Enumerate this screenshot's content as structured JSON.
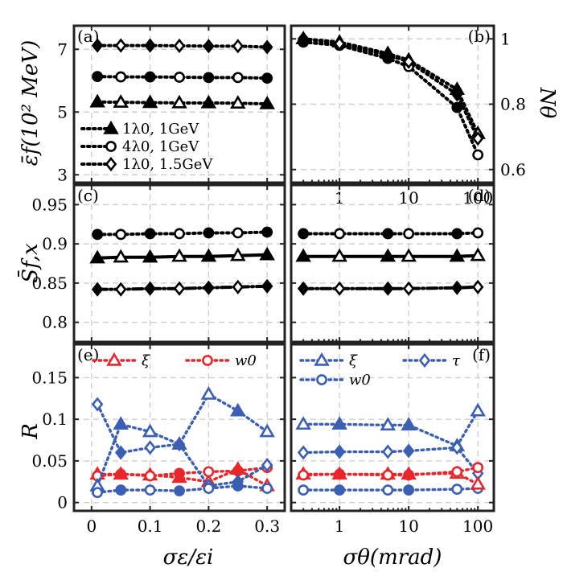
{
  "figure": {
    "x_labels": [
      "σε/εi",
      "σθ(mrad)"
    ],
    "y_labels": [
      "ε̄f(10² MeV)",
      "Nθ",
      "S̄f,x",
      "R"
    ]
  },
  "chart_data": [
    {
      "id": "a",
      "panel_label": "(a)",
      "type": "line",
      "xscale": "linear",
      "xlim": [
        -0.03,
        0.33
      ],
      "ylim": [
        2.75,
        7.75
      ],
      "xticks": [
        0,
        0.1,
        0.2,
        0.3
      ],
      "yticks": [
        3,
        5,
        7
      ],
      "ylabel": "ε̄f(10² MeV)",
      "ylabel_side": "left",
      "grid": true,
      "legend": "lower-left",
      "x": [
        0.01,
        0.05,
        0.1,
        0.15,
        0.2,
        0.25,
        0.3
      ],
      "series": [
        {
          "name": "1λ0, 1GeV",
          "marker": "triangle",
          "color": "#000000",
          "dash": "dotted",
          "values": [
            5.32,
            5.31,
            5.3,
            5.29,
            5.29,
            5.28,
            5.26
          ]
        },
        {
          "name": "4λ0, 1GeV",
          "marker": "circle",
          "color": "#000000",
          "dash": "dotted",
          "values": [
            6.13,
            6.12,
            6.12,
            6.11,
            6.1,
            6.1,
            6.08
          ]
        },
        {
          "name": "1λ0, 1.5GeV",
          "marker": "diamond",
          "color": "#000000",
          "dash": "dotted",
          "values": [
            7.12,
            7.12,
            7.12,
            7.11,
            7.1,
            7.1,
            7.07
          ]
        }
      ]
    },
    {
      "id": "b",
      "panel_label": "(b)",
      "type": "line",
      "xscale": "log",
      "xlim": [
        0.2,
        170
      ],
      "ylim": [
        0.56,
        1.04
      ],
      "xticks": [
        1,
        10,
        100
      ],
      "xtick_labels": [
        "1",
        "10",
        "100"
      ],
      "yticks": [
        0.6,
        0.8,
        1
      ],
      "ytick_labels": [
        "0.6",
        "0.8",
        "1"
      ],
      "ylabel": "Nθ",
      "ylabel_side": "right",
      "grid": true,
      "x": [
        0.3,
        1,
        5,
        10,
        50,
        100
      ],
      "series": [
        {
          "name": "1λ0, 1GeV",
          "marker": "triangle",
          "color": "#000000",
          "dash": "dotted",
          "values": [
            1.0,
            0.99,
            0.955,
            0.935,
            0.845,
            0.71
          ]
        },
        {
          "name": "4λ0, 1GeV",
          "marker": "circle",
          "color": "#000000",
          "dash": "dotted",
          "values": [
            0.99,
            0.98,
            0.94,
            0.915,
            0.79,
            0.645
          ]
        },
        {
          "name": "1λ0, 1.5GeV",
          "marker": "diamond",
          "color": "#000000",
          "dash": "dotted",
          "values": [
            1.0,
            0.985,
            0.95,
            0.93,
            0.83,
            0.695
          ]
        }
      ]
    },
    {
      "id": "c",
      "panel_label": "(c)",
      "type": "line",
      "xscale": "linear",
      "xlim": [
        -0.03,
        0.33
      ],
      "ylim": [
        0.775,
        0.975
      ],
      "xticks": [
        0,
        0.1,
        0.2,
        0.3
      ],
      "yticks": [
        0.8,
        0.85,
        0.9,
        0.95
      ],
      "ytick_labels": [
        "0.8",
        "0.85",
        "0.9",
        "0.95"
      ],
      "ylabel": "S̄f,x",
      "ylabel_side": "left",
      "grid": true,
      "x": [
        0.01,
        0.05,
        0.1,
        0.15,
        0.2,
        0.25,
        0.3
      ],
      "series": [
        {
          "name": "4λ0, 1GeV",
          "marker": "circle",
          "color": "#000000",
          "dash": "dotted",
          "values": [
            0.912,
            0.912,
            0.913,
            0.913,
            0.914,
            0.914,
            0.915
          ]
        },
        {
          "name": "1λ0, 1GeV",
          "marker": "triangle",
          "color": "#000000",
          "dash": "solid",
          "values": [
            0.882,
            0.883,
            0.883,
            0.884,
            0.884,
            0.885,
            0.886
          ]
        },
        {
          "name": "1λ0, 1.5GeV",
          "marker": "diamond",
          "color": "#000000",
          "dash": "dashdot",
          "values": [
            0.842,
            0.842,
            0.843,
            0.843,
            0.844,
            0.845,
            0.846
          ]
        }
      ]
    },
    {
      "id": "d",
      "panel_label": "(d)",
      "type": "line",
      "xscale": "log",
      "xlim": [
        0.2,
        170
      ],
      "ylim": [
        0.775,
        0.975
      ],
      "xticks": [
        1,
        10,
        100
      ],
      "yticks": [
        0.8,
        0.85,
        0.9,
        0.95
      ],
      "grid": true,
      "x": [
        0.3,
        1,
        5,
        10,
        50,
        100
      ],
      "series": [
        {
          "name": "4λ0, 1GeV",
          "marker": "circle",
          "color": "#000000",
          "dash": "dotted",
          "values": [
            0.913,
            0.913,
            0.913,
            0.913,
            0.913,
            0.914
          ]
        },
        {
          "name": "1λ0, 1GeV",
          "marker": "triangle",
          "color": "#000000",
          "dash": "solid",
          "values": [
            0.884,
            0.884,
            0.884,
            0.884,
            0.884,
            0.885
          ]
        },
        {
          "name": "1λ0, 1.5GeV",
          "marker": "diamond",
          "color": "#000000",
          "dash": "dashdot",
          "values": [
            0.843,
            0.843,
            0.843,
            0.843,
            0.844,
            0.845
          ]
        }
      ]
    },
    {
      "id": "e",
      "panel_label": "(e)",
      "type": "line",
      "xscale": "linear",
      "xlim": [
        -0.03,
        0.33
      ],
      "ylim": [
        -0.01,
        0.19
      ],
      "xticks": [
        0,
        0.1,
        0.2,
        0.3
      ],
      "xtick_labels": [
        "0",
        "0.1",
        "0.2",
        "0.3"
      ],
      "yticks": [
        0,
        0.05,
        0.1,
        0.15
      ],
      "ytick_labels": [
        "0",
        "0.05",
        "0.1",
        "0.15"
      ],
      "xlabel": "σε/εi",
      "ylabel": "R",
      "ylabel_side": "left",
      "grid": true,
      "legend": "top",
      "x": [
        0.01,
        0.05,
        0.1,
        0.15,
        0.2,
        0.25,
        0.3
      ],
      "series": [
        {
          "name": "ξ",
          "group": "red",
          "marker": "triangle",
          "color": "#e8262b",
          "values": [
            0.034,
            0.034,
            0.033,
            0.03,
            0.025,
            0.04,
            0.02
          ]
        },
        {
          "name": "w0",
          "group": "red",
          "marker": "circle",
          "color": "#e8262b",
          "values": [
            0.032,
            0.034,
            0.032,
            0.035,
            0.037,
            0.038,
            0.042
          ]
        },
        {
          "group": "blue",
          "marker": "triangle",
          "color": "#3a5fb3",
          "values": [
            0.02,
            0.094,
            0.085,
            0.07,
            0.13,
            0.11,
            0.085
          ]
        },
        {
          "group": "blue",
          "marker": "diamond",
          "color": "#3a5fb3",
          "values": [
            0.118,
            0.06,
            0.066,
            0.07,
            0.02,
            0.025,
            0.045
          ]
        },
        {
          "group": "blue",
          "marker": "circle",
          "color": "#3a5fb3",
          "values": [
            0.012,
            0.015,
            0.015,
            0.014,
            0.017,
            0.02,
            0.017
          ]
        }
      ]
    },
    {
      "id": "f",
      "panel_label": "(f)",
      "type": "line",
      "xscale": "log",
      "xlim": [
        0.2,
        170
      ],
      "ylim": [
        -0.01,
        0.19
      ],
      "xticks": [
        1,
        10,
        100
      ],
      "xtick_labels": [
        "1",
        "10",
        "100"
      ],
      "yticks": [
        0,
        0.05,
        0.1,
        0.15
      ],
      "xlabel": "σθ(mrad)",
      "grid": true,
      "legend": "top",
      "x": [
        0.3,
        1,
        5,
        10,
        50,
        100
      ],
      "series": [
        {
          "name": "ξ",
          "group": "blue",
          "marker": "triangle",
          "color": "#3a5fb3",
          "values": [
            0.094,
            0.094,
            0.093,
            0.093,
            0.068,
            0.11
          ]
        },
        {
          "name": "τ",
          "group": "blue",
          "marker": "diamond",
          "color": "#3a5fb3",
          "values": [
            0.06,
            0.061,
            0.061,
            0.062,
            0.066,
            0.035
          ]
        },
        {
          "name": "w0",
          "group": "blue",
          "marker": "circle",
          "color": "#3a5fb3",
          "values": [
            0.015,
            0.015,
            0.015,
            0.015,
            0.016,
            0.017
          ]
        },
        {
          "group": "red",
          "marker": "triangle",
          "color": "#e8262b",
          "values": [
            0.034,
            0.034,
            0.034,
            0.034,
            0.035,
            0.022
          ]
        },
        {
          "group": "red",
          "marker": "circle",
          "color": "#e8262b",
          "values": [
            0.033,
            0.034,
            0.033,
            0.033,
            0.037,
            0.042
          ]
        }
      ]
    }
  ]
}
